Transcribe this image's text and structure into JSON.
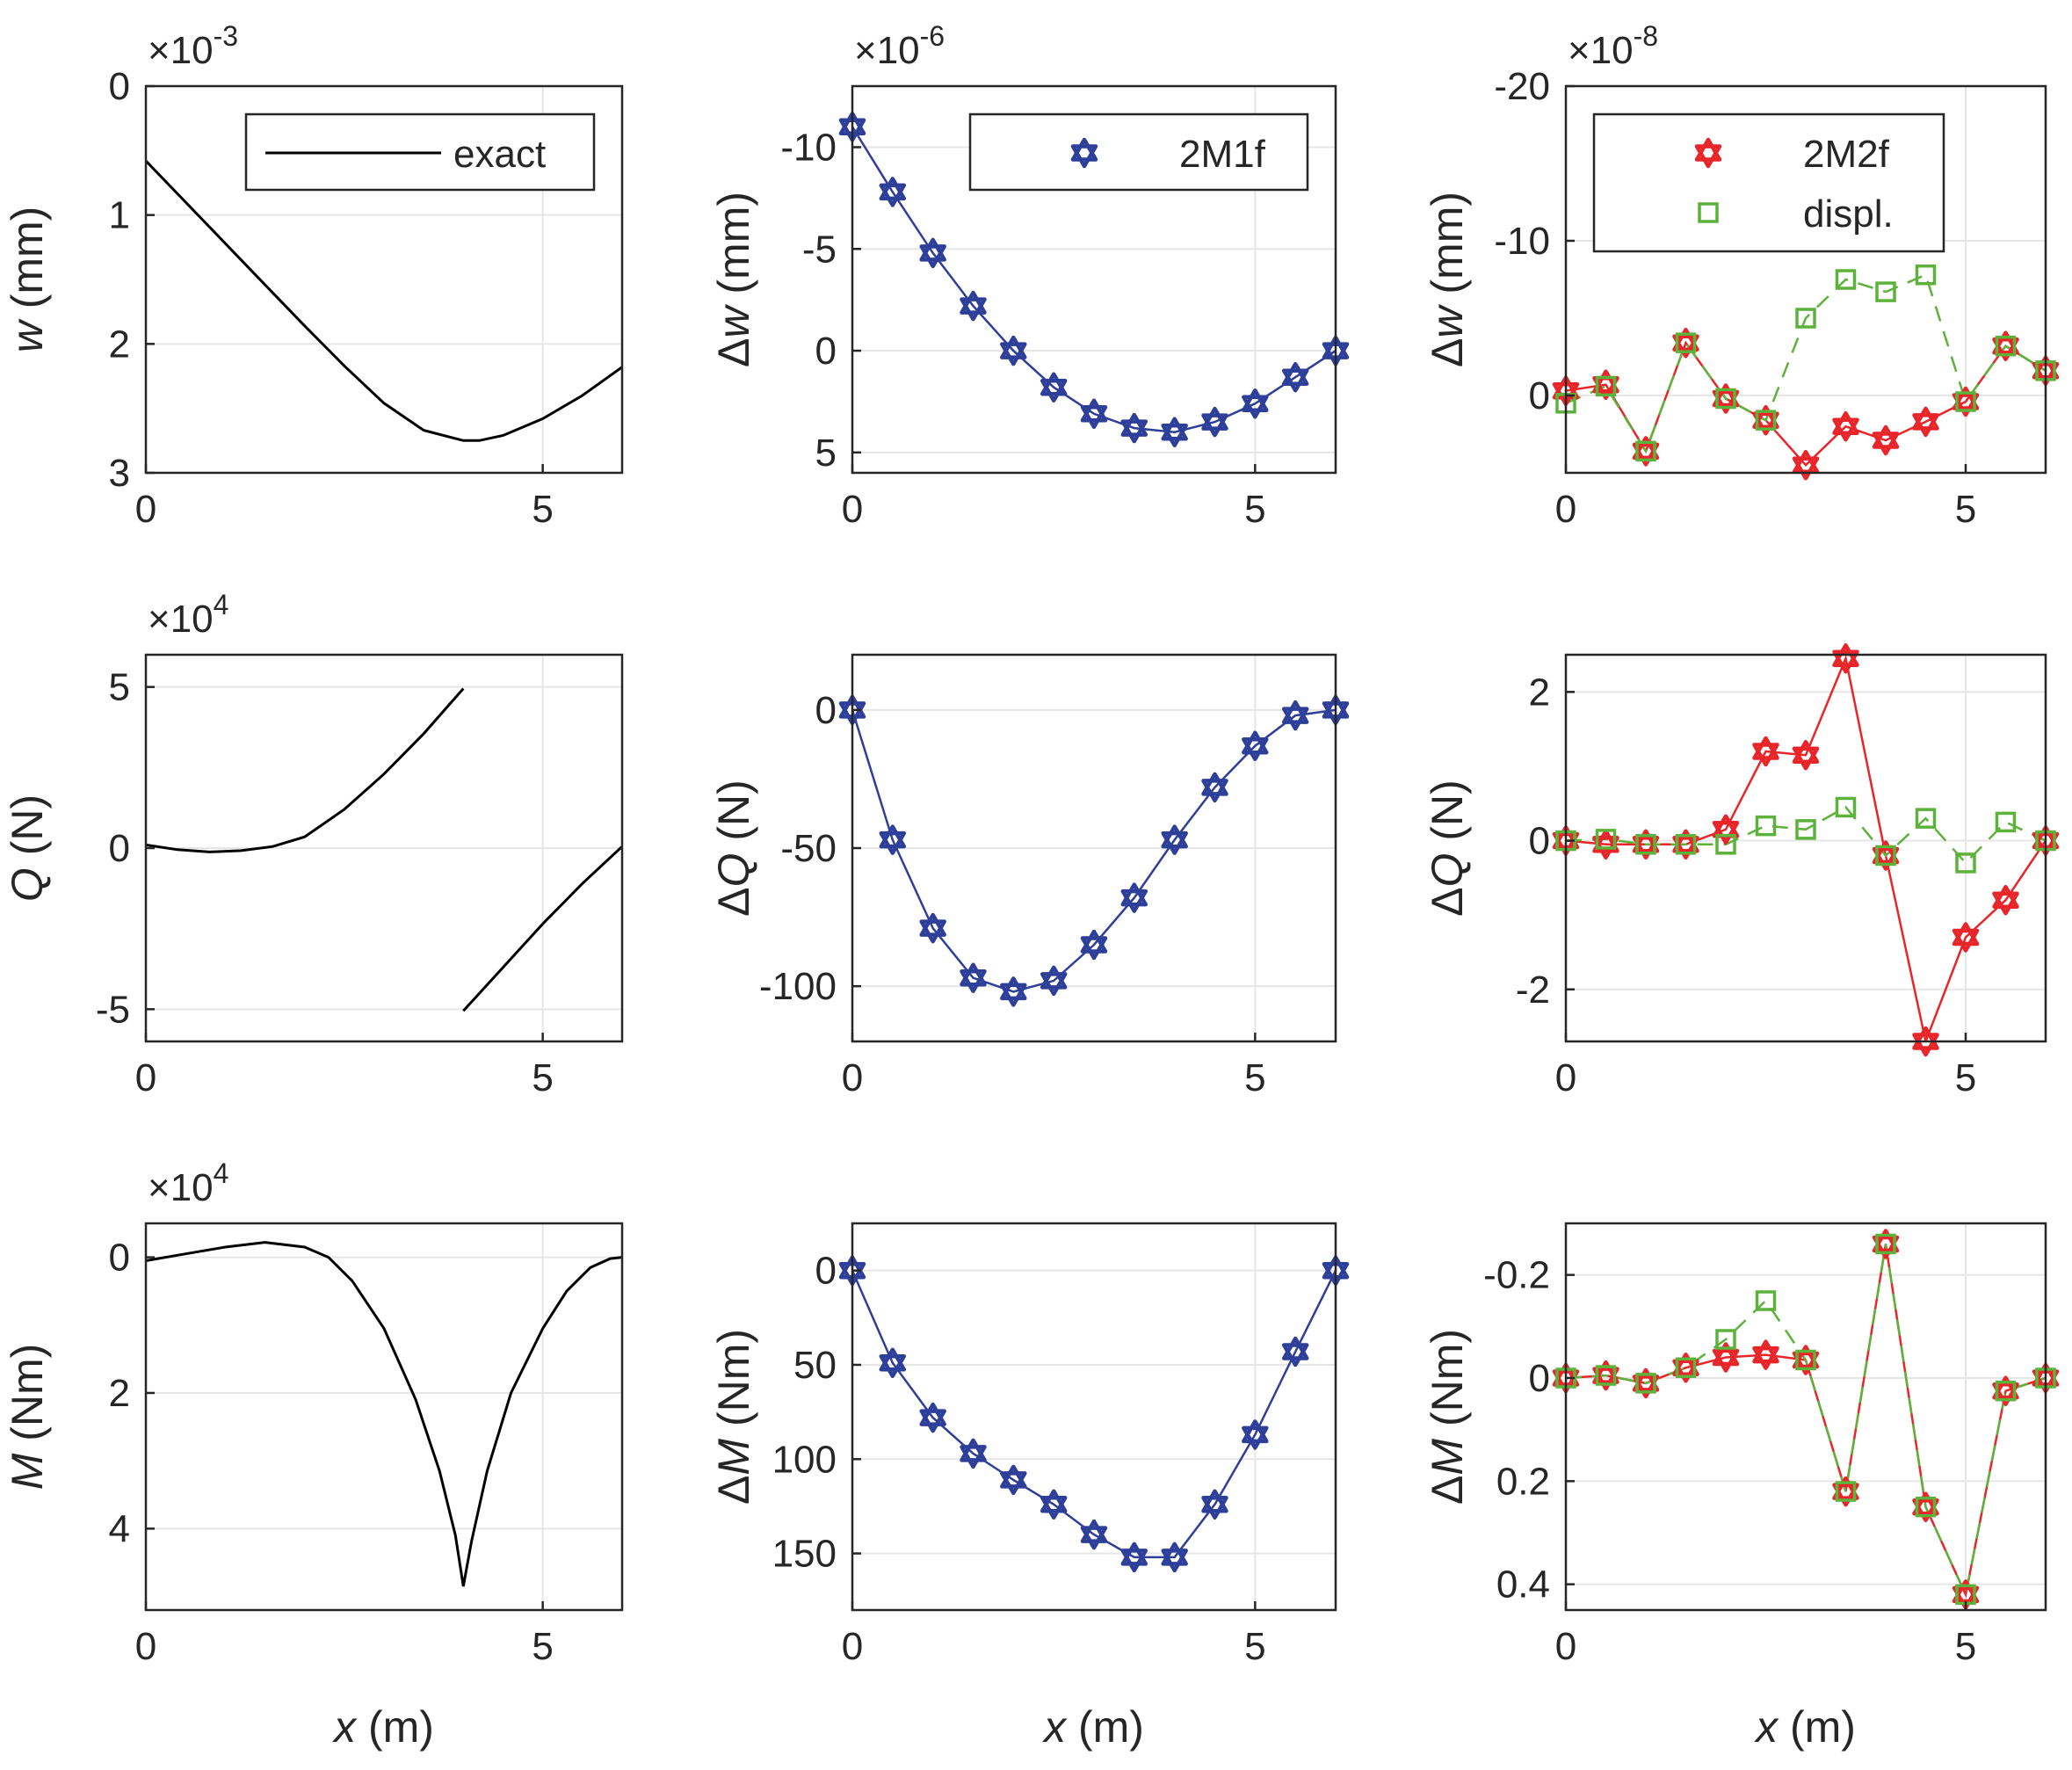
{
  "figure": {
    "xlabel": "x",
    "xlabel_unit": " (m)",
    "colors": {
      "exact": "#000000",
      "s2M1f": "#2e3f99",
      "s2M2f": "#e8262a",
      "displ": "#5cb23a",
      "grid": "#e6e6e6",
      "axis": "#262626"
    }
  },
  "chart_data": [
    {
      "id": "w_exact",
      "type": "line",
      "inverted_y": true,
      "ylabel_main": "w",
      "ylabel_unit": " (mm)",
      "exponent_base": "×10",
      "exponent": "-3",
      "xlim": [
        0,
        6
      ],
      "ylim": [
        0,
        3
      ],
      "xticks": [
        {
          "v": 0,
          "label": "0"
        },
        {
          "v": 5,
          "label": "5"
        }
      ],
      "yticks": [
        {
          "v": 0,
          "label": "0"
        },
        {
          "v": 1,
          "label": "1"
        },
        {
          "v": 2,
          "label": "2"
        },
        {
          "v": 3,
          "label": "3"
        }
      ],
      "legend": [
        {
          "label": "exact",
          "style": "exact"
        }
      ],
      "series": [
        {
          "name": "exact",
          "style": "exact",
          "segments": [
            [
              [
                0,
                0.58
              ],
              [
                0.5,
                0.9
              ],
              [
                1,
                1.22
              ],
              [
                1.5,
                1.54
              ],
              [
                2,
                1.86
              ],
              [
                2.5,
                2.17
              ],
              [
                3,
                2.46
              ],
              [
                3.5,
                2.67
              ],
              [
                4,
                2.75
              ],
              [
                4.2,
                2.75
              ],
              [
                4.5,
                2.71
              ],
              [
                5,
                2.58
              ],
              [
                5.5,
                2.4
              ],
              [
                6,
                2.18
              ]
            ]
          ]
        }
      ]
    },
    {
      "id": "dw_2M1f",
      "type": "line",
      "inverted_y": true,
      "ylabel_main": "Δw",
      "ylabel_unit": " (mm)",
      "exponent_base": "×10",
      "exponent": "-6",
      "xlim": [
        0,
        6
      ],
      "ylim": [
        -13,
        6
      ],
      "xticks": [
        {
          "v": 0,
          "label": "0"
        },
        {
          "v": 5,
          "label": "5"
        }
      ],
      "yticks": [
        {
          "v": -10,
          "label": "-10"
        },
        {
          "v": -5,
          "label": "-5"
        },
        {
          "v": 0,
          "label": "0"
        },
        {
          "v": 5,
          "label": "5"
        }
      ],
      "legend": [
        {
          "label": "2M1f",
          "style": "s2M1f"
        }
      ],
      "series": [
        {
          "name": "2M1f",
          "style": "s2M1f",
          "marker": "star",
          "x": [
            0,
            0.5,
            1,
            1.5,
            2,
            2.5,
            3,
            3.5,
            4,
            4.5,
            5,
            5.5,
            6
          ],
          "y": [
            -11,
            -7.8,
            -4.8,
            -2.2,
            0,
            1.8,
            3.1,
            3.8,
            4.0,
            3.5,
            2.6,
            1.3,
            0
          ]
        }
      ]
    },
    {
      "id": "dw_2M2f",
      "type": "line",
      "inverted_y": true,
      "ylabel_main": "Δw",
      "ylabel_unit": " (mm)",
      "exponent_base": "×10",
      "exponent": "-8",
      "xlim": [
        0,
        6
      ],
      "ylim": [
        -20,
        5
      ],
      "xticks": [
        {
          "v": 0,
          "label": "0"
        },
        {
          "v": 5,
          "label": "5"
        }
      ],
      "yticks": [
        {
          "v": -20,
          "label": "-20"
        },
        {
          "v": -10,
          "label": "-10"
        },
        {
          "v": 0,
          "label": "0"
        }
      ],
      "legend": [
        {
          "label": "2M2f",
          "style": "s2M2f"
        },
        {
          "label": "displ.",
          "style": "displ"
        }
      ],
      "series": [
        {
          "name": "2M2f",
          "style": "s2M2f",
          "marker": "star",
          "x": [
            0,
            0.5,
            1,
            1.5,
            2,
            2.5,
            3,
            3.5,
            4,
            4.5,
            5,
            5.5,
            6
          ],
          "y": [
            -0.3,
            -0.7,
            3.6,
            -3.4,
            0.2,
            1.6,
            4.5,
            2.0,
            2.9,
            1.7,
            0.4,
            -3.2,
            -1.6
          ]
        },
        {
          "name": "displ.",
          "style": "displ",
          "marker": "square",
          "x": [
            0,
            0.5,
            1,
            1.5,
            2,
            2.5,
            3,
            3.5,
            4,
            4.5,
            5,
            5.5,
            6
          ],
          "y": [
            0.5,
            -0.6,
            3.6,
            -3.4,
            0.2,
            1.6,
            -5.0,
            -7.5,
            -6.7,
            -7.8,
            0.4,
            -3.2,
            -1.6
          ]
        }
      ]
    },
    {
      "id": "Q_exact",
      "type": "line",
      "inverted_y": false,
      "ylabel_main": "Q",
      "ylabel_unit": " (N)",
      "exponent_base": "×10",
      "exponent": "4",
      "xlim": [
        0,
        6
      ],
      "ylim": [
        -6,
        6
      ],
      "xticks": [
        {
          "v": 0,
          "label": "0"
        },
        {
          "v": 5,
          "label": "5"
        }
      ],
      "yticks": [
        {
          "v": -5,
          "label": "-5"
        },
        {
          "v": 0,
          "label": "0"
        },
        {
          "v": 5,
          "label": "5"
        }
      ],
      "legend": [],
      "series": [
        {
          "name": "exact",
          "style": "exact",
          "segments": [
            [
              [
                0,
                0.1
              ],
              [
                0.4,
                -0.05
              ],
              [
                0.8,
                -0.12
              ],
              [
                1.2,
                -0.08
              ],
              [
                1.6,
                0.05
              ],
              [
                2,
                0.35
              ],
              [
                2.5,
                1.2
              ],
              [
                3,
                2.3
              ],
              [
                3.5,
                3.55
              ],
              [
                4,
                4.95
              ]
            ],
            [
              [
                4,
                -5.05
              ],
              [
                4.5,
                -3.7
              ],
              [
                5,
                -2.35
              ],
              [
                5.5,
                -1.1
              ],
              [
                6,
                0.05
              ]
            ]
          ]
        }
      ]
    },
    {
      "id": "dQ_2M1f",
      "type": "line",
      "inverted_y": false,
      "ylabel_main": "ΔQ",
      "ylabel_unit": " (N)",
      "exponent_base": "",
      "exponent": "",
      "xlim": [
        0,
        6
      ],
      "ylim": [
        -120,
        20
      ],
      "xticks": [
        {
          "v": 0,
          "label": "0"
        },
        {
          "v": 5,
          "label": "5"
        }
      ],
      "yticks": [
        {
          "v": -100,
          "label": "-100"
        },
        {
          "v": -50,
          "label": "-50"
        },
        {
          "v": 0,
          "label": "0"
        }
      ],
      "legend": [],
      "series": [
        {
          "name": "2M1f",
          "style": "s2M1f",
          "marker": "star",
          "x": [
            0,
            0.5,
            1,
            1.5,
            2,
            2.5,
            3,
            3.5,
            4,
            4.5,
            5,
            5.5,
            6
          ],
          "y": [
            0,
            -47,
            -79,
            -97,
            -102,
            -98,
            -85,
            -68,
            -47,
            -28,
            -13,
            -2,
            0
          ]
        }
      ]
    },
    {
      "id": "dQ_2M2f",
      "type": "line",
      "inverted_y": false,
      "ylabel_main": "ΔQ",
      "ylabel_unit": " (N)",
      "exponent_base": "",
      "exponent": "",
      "xlim": [
        0,
        6
      ],
      "ylim": [
        -2.7,
        2.5
      ],
      "xticks": [
        {
          "v": 0,
          "label": "0"
        },
        {
          "v": 5,
          "label": "5"
        }
      ],
      "yticks": [
        {
          "v": -2,
          "label": "-2"
        },
        {
          "v": 0,
          "label": "0"
        },
        {
          "v": 2,
          "label": "2"
        }
      ],
      "legend": [],
      "series": [
        {
          "name": "2M2f",
          "style": "s2M2f",
          "marker": "star",
          "x": [
            0,
            0.5,
            1,
            1.5,
            2,
            2.5,
            3,
            3.5,
            4,
            4.5,
            5,
            5.5,
            6
          ],
          "y": [
            0,
            -0.05,
            -0.05,
            -0.05,
            0.15,
            1.2,
            1.15,
            2.45,
            -0.2,
            -2.7,
            -1.3,
            -0.8,
            0
          ]
        },
        {
          "name": "displ.",
          "style": "displ",
          "marker": "square",
          "x": [
            0,
            0.5,
            1,
            1.5,
            2,
            2.5,
            3,
            3.5,
            4,
            4.5,
            5,
            5.5,
            6
          ],
          "y": [
            0,
            0.02,
            -0.05,
            -0.05,
            -0.05,
            0.2,
            0.15,
            0.45,
            -0.2,
            0.3,
            -0.3,
            0.25,
            0
          ]
        }
      ]
    },
    {
      "id": "M_exact",
      "type": "line",
      "inverted_y": true,
      "ylabel_main": "M",
      "ylabel_unit": " (Nm)",
      "exponent_base": "×10",
      "exponent": "4",
      "xlim": [
        0,
        6
      ],
      "ylim": [
        -0.5,
        5.2
      ],
      "xticks": [
        {
          "v": 0,
          "label": "0"
        },
        {
          "v": 5,
          "label": "5"
        }
      ],
      "yticks": [
        {
          "v": 0,
          "label": "0"
        },
        {
          "v": 2,
          "label": "2"
        },
        {
          "v": 4,
          "label": "4"
        }
      ],
      "legend": [],
      "series": [
        {
          "name": "exact",
          "style": "exact",
          "segments": [
            [
              [
                0,
                0.05
              ],
              [
                0.5,
                -0.05
              ],
              [
                1,
                -0.15
              ],
              [
                1.5,
                -0.22
              ],
              [
                2,
                -0.15
              ],
              [
                2.3,
                0.0
              ],
              [
                2.6,
                0.35
              ],
              [
                3,
                1.05
              ],
              [
                3.4,
                2.1
              ],
              [
                3.7,
                3.15
              ],
              [
                3.9,
                4.1
              ],
              [
                4,
                4.85
              ],
              [
                4.1,
                4.2
              ],
              [
                4.3,
                3.15
              ],
              [
                4.6,
                2.0
              ],
              [
                5,
                1.05
              ],
              [
                5.3,
                0.5
              ],
              [
                5.6,
                0.15
              ],
              [
                5.85,
                0.02
              ],
              [
                6,
                0
              ]
            ]
          ]
        }
      ]
    },
    {
      "id": "dM_2M1f",
      "type": "line",
      "inverted_y": true,
      "ylabel_main": "ΔM",
      "ylabel_unit": " (Nm)",
      "exponent_base": "",
      "exponent": "",
      "xlim": [
        0,
        6
      ],
      "ylim": [
        -25,
        180
      ],
      "xticks": [
        {
          "v": 0,
          "label": "0"
        },
        {
          "v": 5,
          "label": "5"
        }
      ],
      "yticks": [
        {
          "v": 0,
          "label": "0"
        },
        {
          "v": 50,
          "label": "50"
        },
        {
          "v": 100,
          "label": "100"
        },
        {
          "v": 150,
          "label": "150"
        }
      ],
      "legend": [],
      "series": [
        {
          "name": "2M1f",
          "style": "s2M1f",
          "marker": "star",
          "x": [
            0,
            0.5,
            1,
            1.5,
            2,
            2.5,
            3,
            3.5,
            4,
            4.5,
            5,
            5.5,
            6
          ],
          "y": [
            0,
            49,
            78,
            97,
            111,
            124,
            140,
            152,
            152,
            124,
            87,
            43,
            0
          ]
        }
      ]
    },
    {
      "id": "dM_2M2f",
      "type": "line",
      "inverted_y": true,
      "ylabel_main": "ΔM",
      "ylabel_unit": " (Nm)",
      "exponent_base": "",
      "exponent": "",
      "xlim": [
        0,
        6
      ],
      "ylim": [
        -0.3,
        0.45
      ],
      "xticks": [
        {
          "v": 0,
          "label": "0"
        },
        {
          "v": 5,
          "label": "5"
        }
      ],
      "yticks": [
        {
          "v": -0.2,
          "label": "-0.2"
        },
        {
          "v": 0,
          "label": "0"
        },
        {
          "v": 0.2,
          "label": "0.2"
        },
        {
          "v": 0.4,
          "label": "0.4"
        }
      ],
      "legend": [],
      "series": [
        {
          "name": "2M2f",
          "style": "s2M2f",
          "marker": "star",
          "x": [
            0,
            0.5,
            1,
            1.5,
            2,
            2.5,
            3,
            3.5,
            4,
            4.5,
            5,
            5.5,
            6
          ],
          "y": [
            0,
            -0.005,
            0.01,
            -0.02,
            -0.04,
            -0.045,
            -0.035,
            0.22,
            -0.26,
            0.25,
            0.42,
            0.025,
            0
          ]
        },
        {
          "name": "displ.",
          "style": "displ",
          "marker": "square",
          "x": [
            0,
            0.5,
            1,
            1.5,
            2,
            2.5,
            3,
            3.5,
            4,
            4.5,
            5,
            5.5,
            6
          ],
          "y": [
            0,
            -0.005,
            0.01,
            -0.02,
            -0.075,
            -0.15,
            -0.035,
            0.22,
            -0.26,
            0.25,
            0.42,
            0.025,
            0
          ]
        }
      ]
    }
  ]
}
